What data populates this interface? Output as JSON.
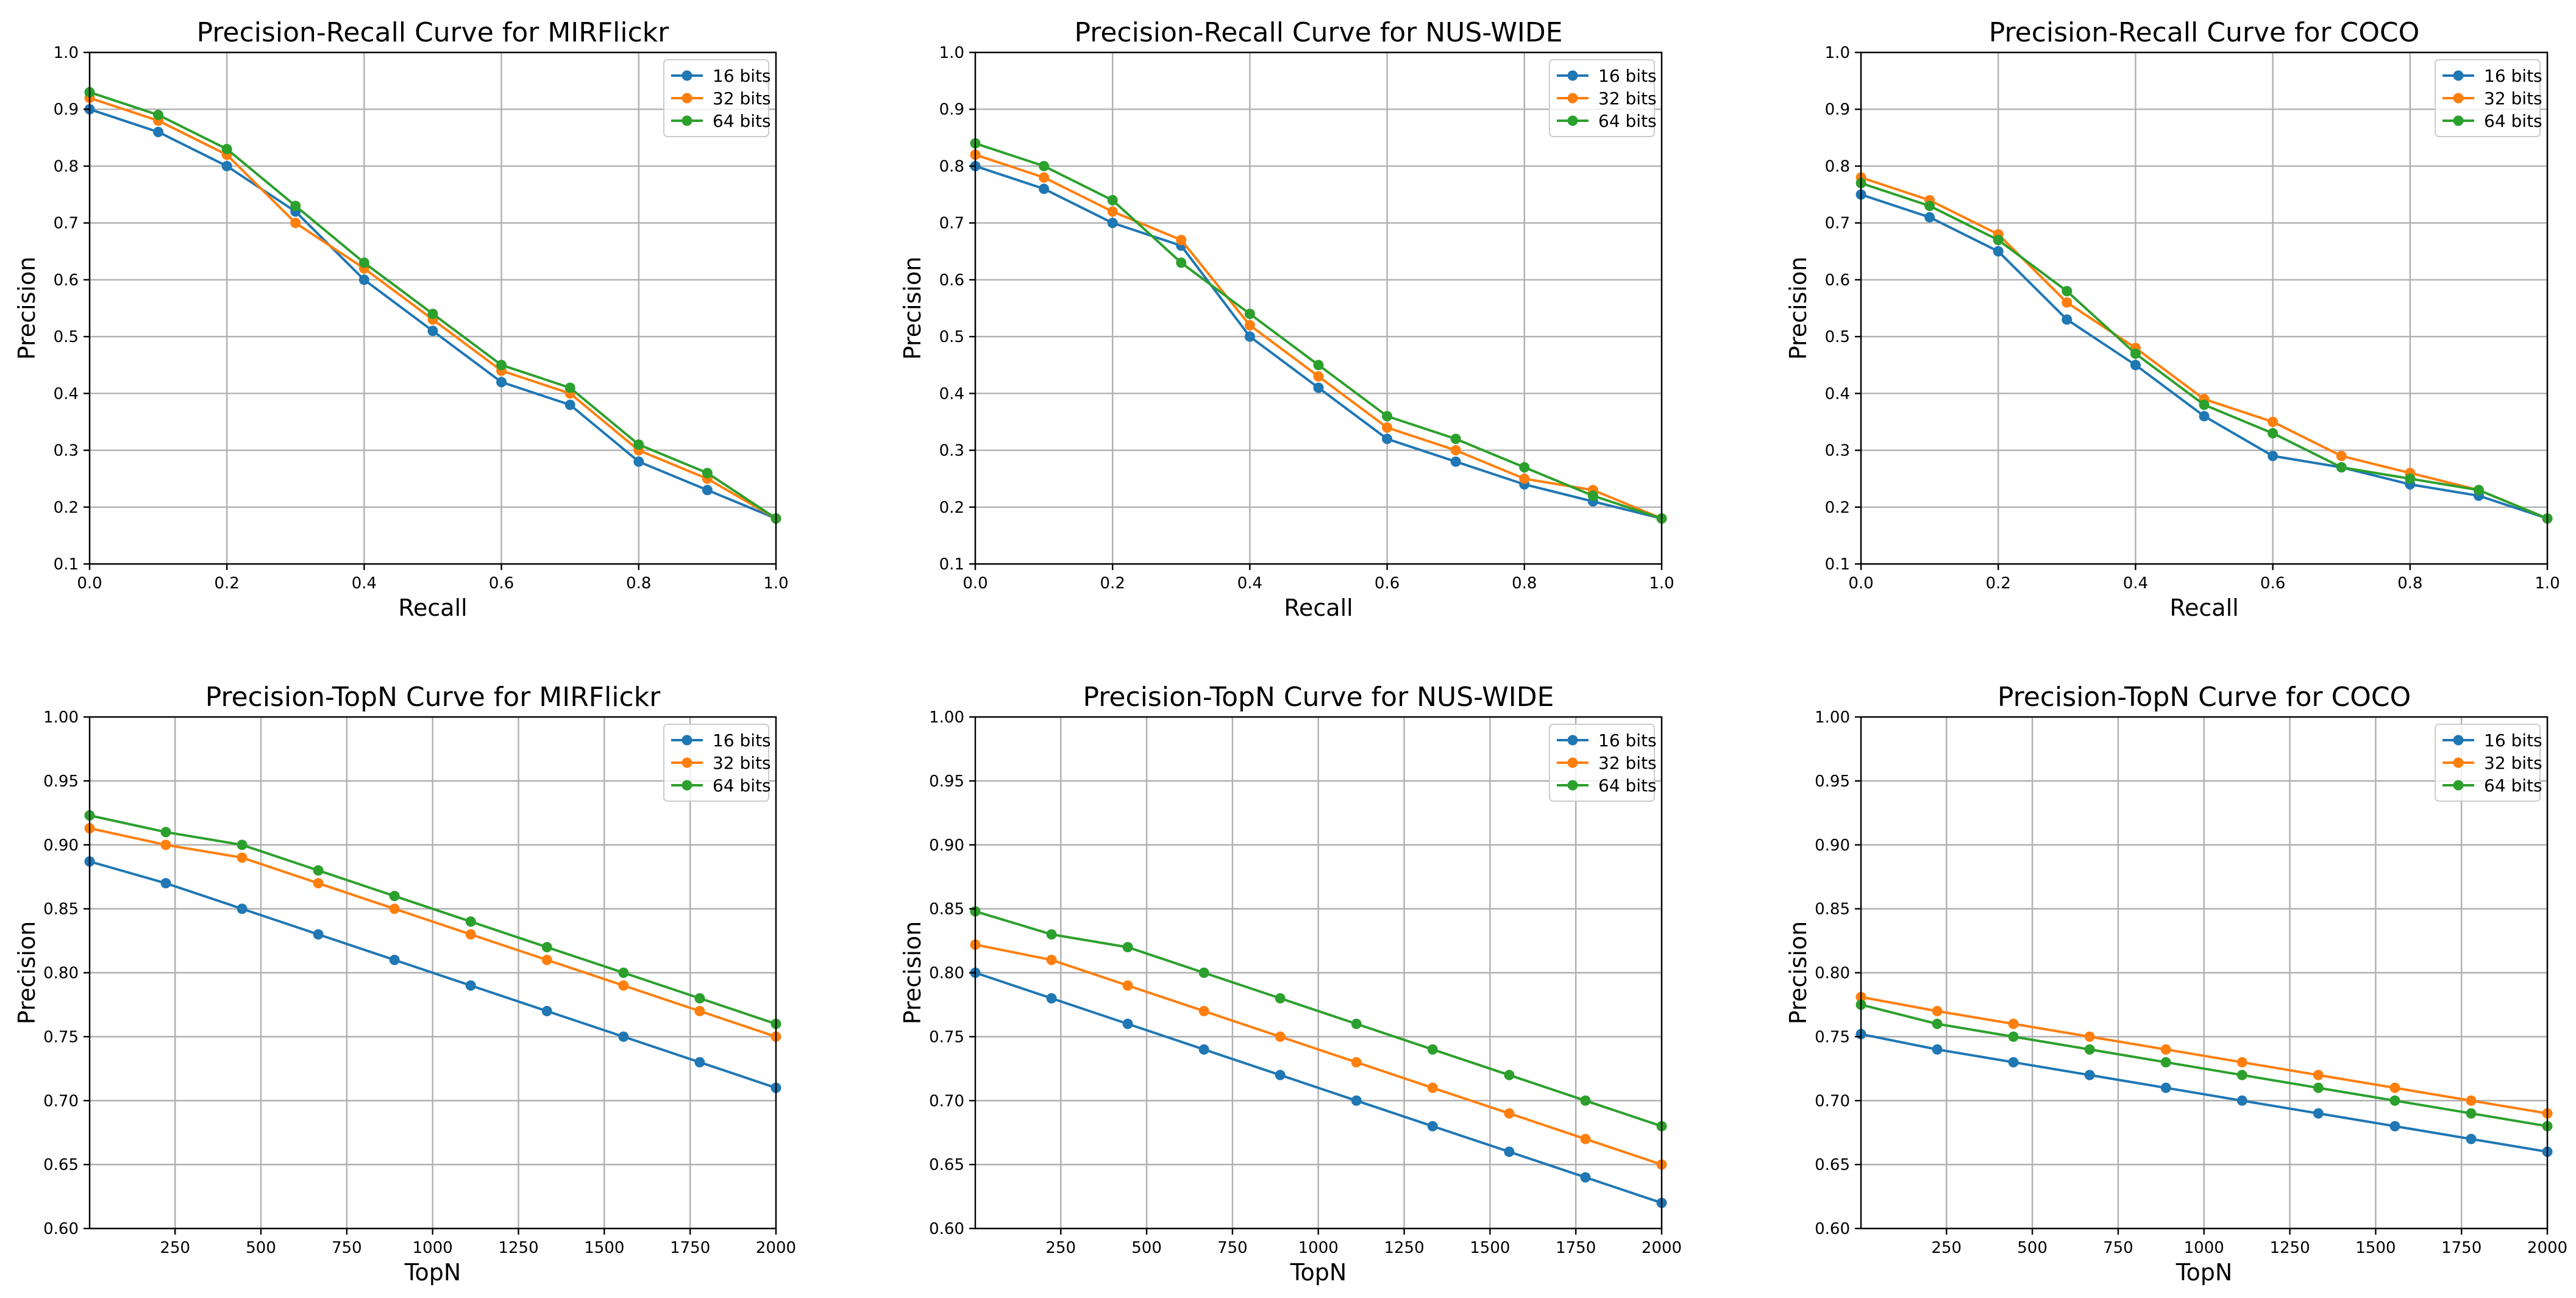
{
  "colors": {
    "16 bits": "#1f77b4",
    "32 bits": "#ff7f0e",
    "64 bits": "#2ca02c"
  },
  "chart_data": [
    {
      "type": "line",
      "title": "Precision-Recall Curve for MIRFlickr",
      "xlabel": "Recall",
      "ylabel": "Precision",
      "xlim": [
        0,
        1
      ],
      "ylim": [
        0.1,
        1.0
      ],
      "xticks": [
        0.0,
        0.2,
        0.4,
        0.6,
        0.8,
        1.0
      ],
      "xtick_labels": [
        "0.0",
        "0.2",
        "0.4",
        "0.6",
        "0.8",
        "1.0"
      ],
      "yticks": [
        0.1,
        0.2,
        0.3,
        0.4,
        0.5,
        0.6,
        0.7,
        0.8,
        0.9,
        1.0
      ],
      "ytick_labels": [
        "0.1",
        "0.2",
        "0.3",
        "0.4",
        "0.5",
        "0.6",
        "0.7",
        "0.8",
        "0.9",
        "1.0"
      ],
      "grid": true,
      "legend": "top-right",
      "x": [
        0.0,
        0.1,
        0.2,
        0.3,
        0.4,
        0.5,
        0.6,
        0.7,
        0.8,
        0.9,
        1.0
      ],
      "series": [
        {
          "name": "16 bits",
          "values": [
            0.9,
            0.86,
            0.8,
            0.72,
            0.6,
            0.51,
            0.42,
            0.38,
            0.28,
            0.23,
            0.18
          ]
        },
        {
          "name": "32 bits",
          "values": [
            0.92,
            0.88,
            0.82,
            0.7,
            0.62,
            0.53,
            0.44,
            0.4,
            0.3,
            0.25,
            0.18
          ]
        },
        {
          "name": "64 bits",
          "values": [
            0.93,
            0.89,
            0.83,
            0.73,
            0.63,
            0.54,
            0.45,
            0.41,
            0.31,
            0.26,
            0.18
          ]
        }
      ]
    },
    {
      "type": "line",
      "title": "Precision-Recall Curve for NUS-WIDE",
      "xlabel": "Recall",
      "ylabel": "Precision",
      "xlim": [
        0,
        1
      ],
      "ylim": [
        0.1,
        1.0
      ],
      "xticks": [
        0.0,
        0.2,
        0.4,
        0.6,
        0.8,
        1.0
      ],
      "xtick_labels": [
        "0.0",
        "0.2",
        "0.4",
        "0.6",
        "0.8",
        "1.0"
      ],
      "yticks": [
        0.1,
        0.2,
        0.3,
        0.4,
        0.5,
        0.6,
        0.7,
        0.8,
        0.9,
        1.0
      ],
      "ytick_labels": [
        "0.1",
        "0.2",
        "0.3",
        "0.4",
        "0.5",
        "0.6",
        "0.7",
        "0.8",
        "0.9",
        "1.0"
      ],
      "grid": true,
      "legend": "top-right",
      "x": [
        0.0,
        0.1,
        0.2,
        0.3,
        0.4,
        0.5,
        0.6,
        0.7,
        0.8,
        0.9,
        1.0
      ],
      "series": [
        {
          "name": "16 bits",
          "values": [
            0.8,
            0.76,
            0.7,
            0.66,
            0.5,
            0.41,
            0.32,
            0.28,
            0.24,
            0.21,
            0.18
          ]
        },
        {
          "name": "32 bits",
          "values": [
            0.82,
            0.78,
            0.72,
            0.67,
            0.52,
            0.43,
            0.34,
            0.3,
            0.25,
            0.23,
            0.18
          ]
        },
        {
          "name": "64 bits",
          "values": [
            0.84,
            0.8,
            0.74,
            0.63,
            0.54,
            0.45,
            0.36,
            0.32,
            0.27,
            0.22,
            0.18
          ]
        }
      ]
    },
    {
      "type": "line",
      "title": "Precision-Recall Curve for COCO",
      "xlabel": "Recall",
      "ylabel": "Precision",
      "xlim": [
        0,
        1
      ],
      "ylim": [
        0.1,
        1.0
      ],
      "xticks": [
        0.0,
        0.2,
        0.4,
        0.6,
        0.8,
        1.0
      ],
      "xtick_labels": [
        "0.0",
        "0.2",
        "0.4",
        "0.6",
        "0.8",
        "1.0"
      ],
      "yticks": [
        0.1,
        0.2,
        0.3,
        0.4,
        0.5,
        0.6,
        0.7,
        0.8,
        0.9,
        1.0
      ],
      "ytick_labels": [
        "0.1",
        "0.2",
        "0.3",
        "0.4",
        "0.5",
        "0.6",
        "0.7",
        "0.8",
        "0.9",
        "1.0"
      ],
      "grid": true,
      "legend": "top-right",
      "x": [
        0.0,
        0.1,
        0.2,
        0.3,
        0.4,
        0.5,
        0.6,
        0.7,
        0.8,
        0.9,
        1.0
      ],
      "series": [
        {
          "name": "16 bits",
          "values": [
            0.75,
            0.71,
            0.65,
            0.53,
            0.45,
            0.36,
            0.29,
            0.27,
            0.24,
            0.22,
            0.18
          ]
        },
        {
          "name": "32 bits",
          "values": [
            0.78,
            0.74,
            0.68,
            0.56,
            0.48,
            0.39,
            0.35,
            0.29,
            0.26,
            0.23,
            0.18
          ]
        },
        {
          "name": "64 bits",
          "values": [
            0.77,
            0.73,
            0.67,
            0.58,
            0.47,
            0.38,
            0.33,
            0.27,
            0.25,
            0.23,
            0.18
          ]
        }
      ]
    },
    {
      "type": "line",
      "title": "Precision-TopN Curve for MIRFlickr",
      "xlabel": "TopN",
      "ylabel": "Precision",
      "xlim": [
        1,
        2000
      ],
      "ylim": [
        0.6,
        1.0
      ],
      "xticks": [
        250,
        500,
        750,
        1000,
        1250,
        1500,
        1750,
        2000
      ],
      "xtick_labels": [
        "250",
        "500",
        "750",
        "1000",
        "1250",
        "1500",
        "1750",
        "2000"
      ],
      "yticks": [
        0.6,
        0.65,
        0.7,
        0.75,
        0.8,
        0.85,
        0.9,
        0.95,
        1.0
      ],
      "ytick_labels": [
        "0.60",
        "0.65",
        "0.70",
        "0.75",
        "0.80",
        "0.85",
        "0.90",
        "0.95",
        "1.00"
      ],
      "grid": true,
      "legend": "top-right",
      "x": [
        1,
        223,
        445,
        667,
        889,
        1111,
        1333,
        1556,
        1778,
        2000
      ],
      "series": [
        {
          "name": "16 bits",
          "values": [
            0.887,
            0.87,
            0.85,
            0.83,
            0.81,
            0.79,
            0.77,
            0.75,
            0.73,
            0.71
          ]
        },
        {
          "name": "32 bits",
          "values": [
            0.913,
            0.9,
            0.89,
            0.87,
            0.85,
            0.83,
            0.81,
            0.79,
            0.77,
            0.75
          ]
        },
        {
          "name": "64 bits",
          "values": [
            0.923,
            0.91,
            0.9,
            0.88,
            0.86,
            0.84,
            0.82,
            0.8,
            0.78,
            0.76
          ]
        }
      ]
    },
    {
      "type": "line",
      "title": "Precision-TopN Curve for NUS-WIDE",
      "xlabel": "TopN",
      "ylabel": "Precision",
      "xlim": [
        1,
        2000
      ],
      "ylim": [
        0.6,
        1.0
      ],
      "xticks": [
        250,
        500,
        750,
        1000,
        1250,
        1500,
        1750,
        2000
      ],
      "xtick_labels": [
        "250",
        "500",
        "750",
        "1000",
        "1250",
        "1500",
        "1750",
        "2000"
      ],
      "yticks": [
        0.6,
        0.65,
        0.7,
        0.75,
        0.8,
        0.85,
        0.9,
        0.95,
        1.0
      ],
      "ytick_labels": [
        "0.60",
        "0.65",
        "0.70",
        "0.75",
        "0.80",
        "0.85",
        "0.90",
        "0.95",
        "1.00"
      ],
      "grid": true,
      "legend": "top-right",
      "x": [
        1,
        223,
        445,
        667,
        889,
        1111,
        1333,
        1556,
        1778,
        2000
      ],
      "series": [
        {
          "name": "16 bits",
          "values": [
            0.8,
            0.78,
            0.76,
            0.74,
            0.72,
            0.7,
            0.68,
            0.66,
            0.64,
            0.62
          ]
        },
        {
          "name": "32 bits",
          "values": [
            0.822,
            0.81,
            0.79,
            0.77,
            0.75,
            0.73,
            0.71,
            0.69,
            0.67,
            0.65
          ]
        },
        {
          "name": "64 bits",
          "values": [
            0.848,
            0.83,
            0.82,
            0.8,
            0.78,
            0.76,
            0.74,
            0.72,
            0.7,
            0.68
          ]
        }
      ]
    },
    {
      "type": "line",
      "title": "Precision-TopN Curve for COCO",
      "xlabel": "TopN",
      "ylabel": "Precision",
      "xlim": [
        1,
        2000
      ],
      "ylim": [
        0.6,
        1.0
      ],
      "xticks": [
        250,
        500,
        750,
        1000,
        1250,
        1500,
        1750,
        2000
      ],
      "xtick_labels": [
        "250",
        "500",
        "750",
        "1000",
        "1250",
        "1500",
        "1750",
        "2000"
      ],
      "yticks": [
        0.6,
        0.65,
        0.7,
        0.75,
        0.8,
        0.85,
        0.9,
        0.95,
        1.0
      ],
      "ytick_labels": [
        "0.60",
        "0.65",
        "0.70",
        "0.75",
        "0.80",
        "0.85",
        "0.90",
        "0.95",
        "1.00"
      ],
      "grid": true,
      "legend": "top-right",
      "x": [
        1,
        223,
        445,
        667,
        889,
        1111,
        1333,
        1556,
        1778,
        2000
      ],
      "series": [
        {
          "name": "16 bits",
          "values": [
            0.752,
            0.74,
            0.73,
            0.72,
            0.71,
            0.7,
            0.69,
            0.68,
            0.67,
            0.66
          ]
        },
        {
          "name": "32 bits",
          "values": [
            0.781,
            0.77,
            0.76,
            0.75,
            0.74,
            0.73,
            0.72,
            0.71,
            0.7,
            0.69
          ]
        },
        {
          "name": "64 bits",
          "values": [
            0.775,
            0.76,
            0.75,
            0.74,
            0.73,
            0.72,
            0.71,
            0.7,
            0.69,
            0.68
          ]
        }
      ]
    }
  ]
}
